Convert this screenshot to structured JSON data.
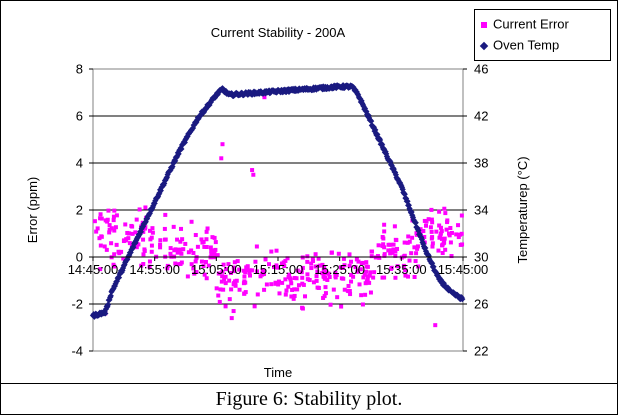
{
  "caption": "Figure 6: Stability plot.",
  "chart_data": {
    "type": "scatter",
    "title": "Current Stability - 200A",
    "xlabel": "Time",
    "ylabel_left": "Error (ppm)",
    "ylabel_right": "Temperaturep (°C)",
    "x_ticks": [
      "14:45:00",
      "14:55:00",
      "15:05:00",
      "15:15:00",
      "15:25:00",
      "15:35:00",
      "15:45:00"
    ],
    "x_range": [
      "14:45:00",
      "15:45:00"
    ],
    "y_left_ticks": [
      "8",
      "6",
      "4",
      "2",
      "0",
      "-2",
      "-4"
    ],
    "y_left_range": [
      -4,
      8
    ],
    "y_right_ticks": [
      "46",
      "42",
      "38",
      "34",
      "30",
      "26",
      "22"
    ],
    "y_right_range": [
      22,
      46
    ],
    "grid": "horizontal",
    "legend_position": "top-right",
    "series": [
      {
        "name": "Current Error",
        "color": "#ff00ff",
        "marker": "square",
        "axis": "left",
        "bands": [
          {
            "t_start": 0,
            "t_end": 12,
            "center": 0.8,
            "spread": 1.3
          },
          {
            "t_start": 12,
            "t_end": 20,
            "center": 0.2,
            "spread": 1.2
          },
          {
            "t_start": 20,
            "t_end": 46,
            "center": -0.8,
            "spread": 1.2
          },
          {
            "t_start": 46,
            "t_end": 53,
            "center": 0.3,
            "spread": 1.2
          },
          {
            "t_start": 53,
            "t_end": 60,
            "center": 1.0,
            "spread": 1.0
          }
        ],
        "outliers": [
          [
            21.0,
            4.8
          ],
          [
            20.8,
            4.2
          ],
          [
            27.8,
            6.8
          ],
          [
            25.8,
            3.7
          ],
          [
            26.0,
            3.5
          ],
          [
            21.5,
            -2.1
          ],
          [
            22.5,
            -2.6
          ],
          [
            22.8,
            -2.3
          ],
          [
            55.5,
            -2.9
          ],
          [
            2.0,
            -2.4
          ]
        ]
      },
      {
        "name": "Oven Temp",
        "color": "#1a1a80",
        "marker": "diamond",
        "axis": "right",
        "segments": [
          [
            0,
            25.0
          ],
          [
            2,
            25.3
          ],
          [
            3,
            27.0
          ],
          [
            8,
            32.5
          ],
          [
            14,
            39.0
          ],
          [
            17,
            41.8
          ],
          [
            20,
            43.8
          ],
          [
            21,
            44.3
          ],
          [
            22,
            43.8
          ],
          [
            30,
            44.1
          ],
          [
            40,
            44.5
          ],
          [
            42,
            44.5
          ],
          [
            43,
            43.8
          ],
          [
            50,
            36.0
          ],
          [
            54,
            30.5
          ],
          [
            56,
            28.2
          ],
          [
            58,
            27.0
          ],
          [
            60,
            26.4
          ]
        ]
      }
    ]
  }
}
